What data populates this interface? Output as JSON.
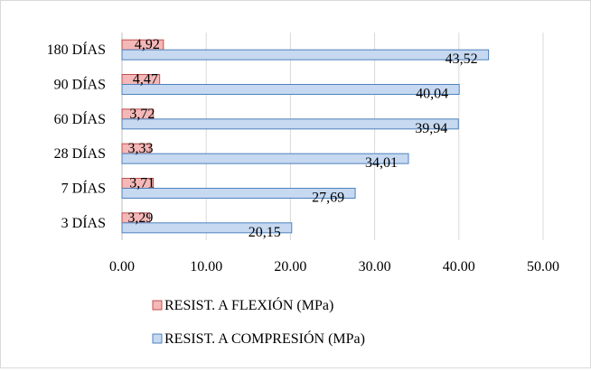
{
  "chart_data": {
    "type": "bar",
    "orientation": "horizontal",
    "title": "",
    "xlabel": "",
    "ylabel": "",
    "categories": [
      "180 DÍAS",
      "90 DÍAS",
      "60 DÍAS",
      "28 DÍAS",
      "7 DÍAS",
      "3 DÍAS"
    ],
    "series": [
      {
        "name": "RESIST. A FLEXIÓN (MPa)",
        "values": [
          4.92,
          4.47,
          3.72,
          3.33,
          3.71,
          3.29
        ],
        "labels": [
          "4,92",
          "4,47",
          "3,72",
          "3,33",
          "3,71",
          "3,29"
        ],
        "color": "#f4b8b8",
        "stroke": "#c0504d"
      },
      {
        "name": "RESIST. A COMPRESIÓN (MPa)",
        "values": [
          43.52,
          40.04,
          39.94,
          34.01,
          27.69,
          20.15
        ],
        "labels": [
          "43,52",
          "40,04",
          "39,94",
          "34,01",
          "27,69",
          "20,15"
        ],
        "color": "#c6d9f1",
        "stroke": "#4f81bd"
      }
    ],
    "xlim": [
      0,
      50
    ],
    "xticks": [
      "0.00",
      "10.00",
      "20.00",
      "30.00",
      "40.00",
      "50.00"
    ],
    "grid": true,
    "legend": "bottom"
  }
}
